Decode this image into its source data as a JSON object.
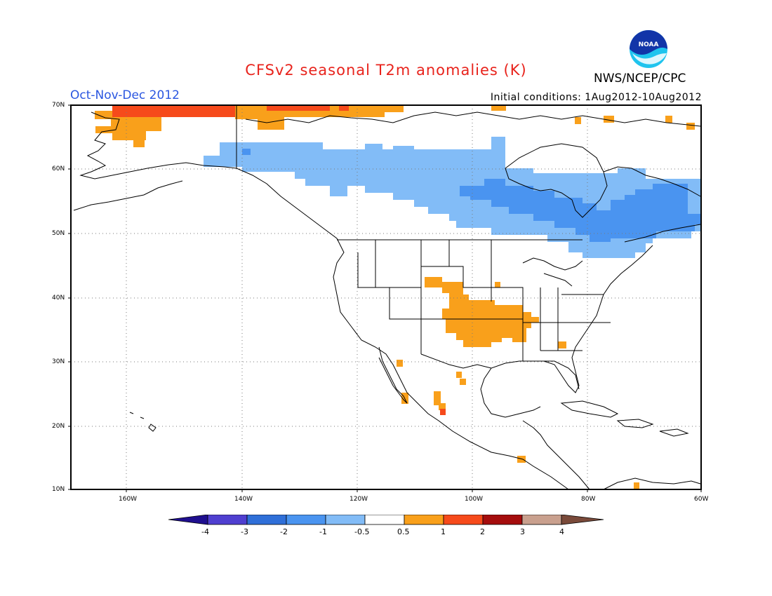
{
  "title": "CFSv2 seasonal T2m anomalies (K)",
  "period": "Oct-Nov-Dec 2012",
  "initial_conditions": "Initial conditions: 1Aug2012-10Aug2012",
  "agency": "NWS/NCEP/CPC",
  "logo_text": "NOAA",
  "map": {
    "lat_labels": [
      "70N",
      "60N",
      "50N",
      "40N",
      "30N",
      "20N",
      "10N"
    ],
    "lon_labels": [
      "160W",
      "140W",
      "120W",
      "100W",
      "80W",
      "60W"
    ],
    "extent": {
      "lon_min": -172,
      "lon_max": -60,
      "lat_min": 10,
      "lat_max": 70
    }
  },
  "colorbar": {
    "labels": [
      "-4",
      "-3",
      "-2",
      "-1",
      "-0.5",
      "0.5",
      "1",
      "2",
      "3",
      "4"
    ],
    "colors": [
      "#1f0f8f",
      "#4f3fd0",
      "#2f6fd8",
      "#4a94f0",
      "#82bcf7",
      "#ffffff",
      "#f9a01b",
      "#f64a1b",
      "#a50d0d",
      "#c9a08e",
      "#7a4a3a"
    ]
  },
  "anomaly_colors": {
    "light_blue": "#82bcf7",
    "mid_blue": "#4a94f0",
    "orange": "#f9a01b",
    "red_orange": "#f64a1b",
    "coast": "#000000"
  }
}
